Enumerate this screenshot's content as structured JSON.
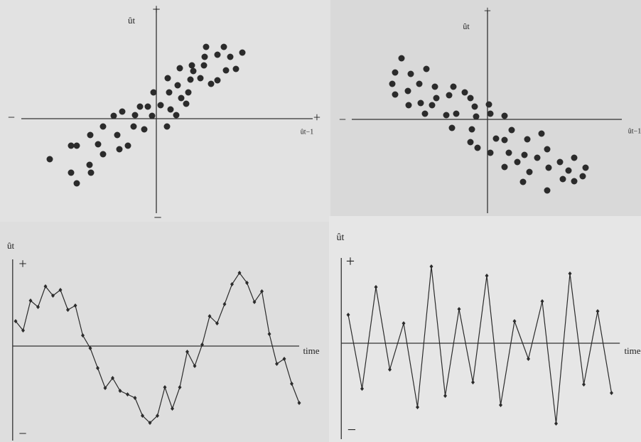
{
  "chart_data": [
    {
      "type": "scatter",
      "y_label": "ût",
      "x_label": "ût−1",
      "y_plus": "+",
      "y_minus": "−",
      "x_plus": "+",
      "x_minus": "−",
      "color": "#2b2b2b",
      "xlim": [
        -19,
        22
      ],
      "ylim": [
        -13.3,
        15.5
      ],
      "x": [
        -15,
        -12,
        -11.2,
        -12,
        -11.2,
        -9.4,
        -9.2,
        -9.3,
        -8.2,
        -7.5,
        -7.5,
        -6,
        -5.5,
        -5.2,
        -4.8,
        -4,
        -3.2,
        -3,
        -2.3,
        -1.7,
        -1.2,
        -0.6,
        -0.4,
        0.6,
        1.5,
        1.6,
        1.8,
        2,
        2.8,
        3,
        3.3,
        3.5,
        4.2,
        4.5,
        4.8,
        5,
        5.2,
        6.2,
        6.7,
        7,
        6.8,
        7.7,
        8.6,
        8.6,
        9.5,
        9.8,
        10.4,
        11.2,
        12.1
      ],
      "values": [
        -5.7,
        -3.8,
        -3.8,
        -7.6,
        -9.1,
        -6.5,
        -7.6,
        -2.3,
        -3.6,
        -5,
        -1.1,
        0.4,
        -2.3,
        -4.3,
        1,
        -3.8,
        -1.1,
        0.5,
        1.7,
        -1.5,
        1.7,
        0.4,
        3.7,
        1.9,
        -1.1,
        5.7,
        3.7,
        1.3,
        0.5,
        4.7,
        7.1,
        2.9,
        2.1,
        3.7,
        5.5,
        7.5,
        6.7,
        5.7,
        7.5,
        10.1,
        8.7,
        4.9,
        5.4,
        9,
        10.1,
        6.8,
        8.7,
        7,
        9.3
      ]
    },
    {
      "type": "scatter",
      "y_label": "ût",
      "x_label": "ût−1",
      "y_plus": "+",
      "x_minus": "−",
      "color": "#2b2b2b",
      "xlim": [
        -19.1,
        18.9
      ],
      "ylim": [
        -13.2,
        15.3
      ],
      "x": [
        -12.1,
        -13,
        -10.8,
        -8.6,
        -13.4,
        -13,
        -11.2,
        -9.6,
        -7.4,
        -11.1,
        -9.4,
        -7.8,
        -7.2,
        -5.4,
        -4.8,
        -3.2,
        -2.4,
        -5.8,
        -8.8,
        -4.4,
        -1.8,
        0.2,
        -1.6,
        0.4,
        2.4,
        -5,
        -2.2,
        -2.4,
        -1.4,
        1.2,
        3.4,
        2.4,
        5.6,
        7.6,
        3,
        5.2,
        0.4,
        2.4,
        4.2,
        7,
        8.4,
        8.6,
        5.9,
        10.2,
        12.2,
        13.8,
        11.4,
        10.6,
        12.2,
        5,
        8.4,
        13.4
      ],
      "values": [
        8.6,
        6.6,
        6.4,
        7.1,
        5,
        3.5,
        4,
        5,
        4.6,
        2,
        2.3,
        2,
        3,
        3.4,
        4.6,
        3.8,
        3,
        0.6,
        0.8,
        0.8,
        1.8,
        2.1,
        0.4,
        0.8,
        0.5,
        -1.2,
        -1.4,
        -3.2,
        -4,
        -2.7,
        -1.5,
        -2.9,
        -2.8,
        -2,
        -4.7,
        -5,
        -4.7,
        -6.7,
        -6,
        -5.4,
        -4.2,
        -6.8,
        -7.4,
        -6,
        -5.4,
        -6.8,
        -7.2,
        -8.4,
        -8.7,
        -8.8,
        -10,
        -8
      ]
    },
    {
      "type": "line",
      "y_label": "ût",
      "x_label": "time",
      "y_plus": "+",
      "y_minus": "−",
      "color": "#2b2b2b",
      "xlim": [
        -0.4,
        38
      ],
      "ylim": [
        -13.3,
        12.2
      ],
      "x": [
        0,
        1,
        2,
        3,
        4,
        5,
        6,
        7,
        8,
        9,
        10,
        11,
        12,
        13,
        14,
        15,
        16,
        17,
        18,
        19,
        20,
        21,
        22,
        23,
        24,
        25,
        26,
        27,
        28,
        29,
        30,
        31,
        32,
        33,
        34,
        35,
        36,
        37,
        38
      ],
      "values": [
        3.5,
        2.2,
        6.4,
        5.5,
        8.4,
        7.1,
        7.9,
        5.1,
        5.7,
        1.5,
        -0.3,
        -3.1,
        -5.9,
        -4.5,
        -6.3,
        -6.8,
        -7.3,
        -9.8,
        -10.8,
        -9.8,
        -5.8,
        -8.8,
        -5.8,
        -0.8,
        -2.8,
        0.2,
        4.2,
        3.2,
        5.9,
        8.7,
        10.3,
        8.9,
        6.2,
        7.7,
        1.7,
        -2.5,
        -1.8,
        -5.3,
        -8
      ]
    },
    {
      "type": "line",
      "y_label": "ût",
      "x_label": "time",
      "y_plus": "+",
      "y_minus": "−",
      "color": "#2b2b2b",
      "xlim": [
        -0.5,
        19.6
      ],
      "ylim": [
        -13.5,
        12
      ],
      "x": [
        0,
        1,
        2,
        3,
        4,
        5,
        6,
        7,
        8,
        9,
        10,
        11,
        12,
        13,
        14,
        15,
        16,
        17,
        18,
        19
      ],
      "values": [
        4,
        -6.4,
        7.9,
        -3.7,
        2.8,
        -9,
        10.8,
        -7.4,
        4.8,
        -5.5,
        9.5,
        -8.7,
        3.1,
        -2.2,
        5.9,
        -11.3,
        9.8,
        -5.8,
        4.5,
        -7
      ]
    }
  ]
}
